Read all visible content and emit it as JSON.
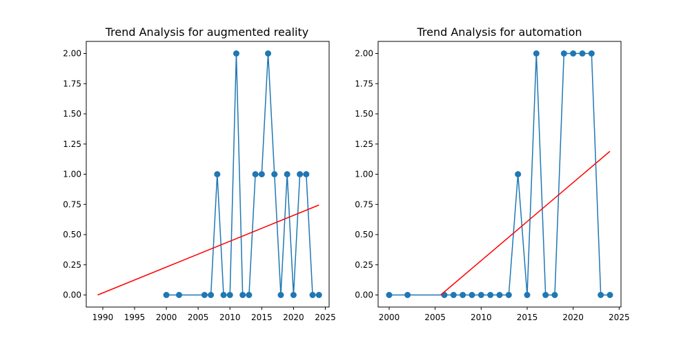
{
  "chart_data": [
    {
      "type": "line",
      "title": "Trend Analysis for augmented reality",
      "xlabel": "",
      "ylabel": "",
      "xlim": [
        1987.4,
        2025.6
      ],
      "ylim": [
        -0.1,
        2.1
      ],
      "xticks": [
        1990,
        1995,
        2000,
        2005,
        2010,
        2015,
        2020,
        2025
      ],
      "yticks": [
        0.0,
        0.25,
        0.5,
        0.75,
        1.0,
        1.25,
        1.5,
        1.75,
        2.0
      ],
      "ytick_labels": [
        "0.00",
        "0.25",
        "0.50",
        "0.75",
        "1.00",
        "1.25",
        "1.50",
        "1.75",
        "2.00"
      ],
      "grid": false,
      "series": [
        {
          "kind": "line-markers",
          "color": "#1f77b4",
          "x": [
            2000,
            2002,
            2006,
            2007,
            2008,
            2009,
            2010,
            2011,
            2012,
            2013,
            2014,
            2015,
            2016,
            2017,
            2018,
            2019,
            2020,
            2021,
            2022,
            2023,
            2024
          ],
          "y": [
            0,
            0,
            0,
            0,
            1,
            0,
            0,
            2,
            0,
            0,
            1,
            1,
            2,
            1,
            0,
            1,
            0,
            1,
            1,
            0,
            0
          ]
        },
        {
          "kind": "trend-line",
          "color": "#ff0000",
          "x": [
            1989.2,
            2024
          ],
          "y": [
            0.0,
            0.745
          ]
        }
      ]
    },
    {
      "type": "line",
      "title": "Trend Analysis for automation",
      "xlabel": "",
      "ylabel": "",
      "xlim": [
        1998.8,
        2025.2
      ],
      "ylim": [
        -0.1,
        2.1
      ],
      "xticks": [
        2000,
        2005,
        2010,
        2015,
        2020,
        2025
      ],
      "yticks": [
        0.0,
        0.25,
        0.5,
        0.75,
        1.0,
        1.25,
        1.5,
        1.75,
        2.0
      ],
      "ytick_labels": [
        "0.00",
        "0.25",
        "0.50",
        "0.75",
        "1.00",
        "1.25",
        "1.50",
        "1.75",
        "2.00"
      ],
      "grid": false,
      "series": [
        {
          "kind": "line-markers",
          "color": "#1f77b4",
          "x": [
            2000,
            2002,
            2006,
            2007,
            2008,
            2009,
            2010,
            2011,
            2012,
            2013,
            2014,
            2015,
            2016,
            2017,
            2018,
            2019,
            2020,
            2021,
            2022,
            2023,
            2024
          ],
          "y": [
            0,
            0,
            0,
            0,
            0,
            0,
            0,
            0,
            0,
            0,
            1,
            0,
            2,
            0,
            0,
            2,
            2,
            2,
            2,
            0,
            0
          ]
        },
        {
          "kind": "trend-line",
          "color": "#ff0000",
          "x": [
            2005.6,
            2024
          ],
          "y": [
            0.0,
            1.19
          ]
        }
      ]
    }
  ]
}
